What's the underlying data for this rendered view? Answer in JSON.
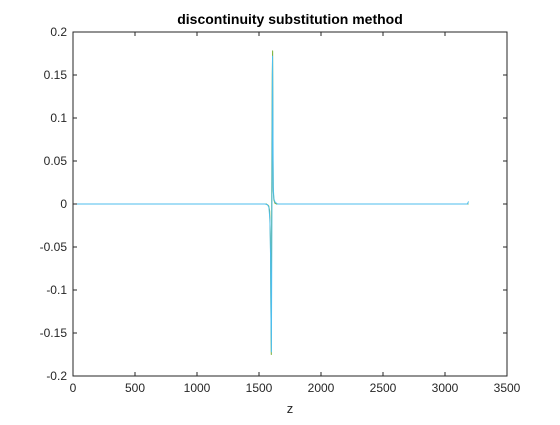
{
  "chart_data": {
    "type": "line",
    "title": "discontinuity substitution method",
    "xlabel": "z",
    "ylabel": "",
    "xlim": [
      0,
      3500
    ],
    "ylim": [
      -0.2,
      0.2
    ],
    "x_ticks": [
      0,
      500,
      1000,
      1500,
      2000,
      2500,
      3000,
      3500
    ],
    "x_tick_labels": [
      "0",
      "500",
      "1000",
      "1500",
      "2000",
      "2500",
      "3000",
      "3500"
    ],
    "y_ticks": [
      -0.2,
      -0.15,
      -0.1,
      -0.05,
      0,
      0.05,
      0.1,
      0.15,
      0.2
    ],
    "y_tick_labels": [
      "-0.2",
      "-0.15",
      "-0.1",
      "-0.05",
      "0",
      "0.05",
      "0.1",
      "0.15",
      "0.2"
    ],
    "grid": false,
    "colors": {
      "axis": "#262626",
      "series_a": "#77ac30",
      "series_b": "#4dbeee"
    },
    "series": [
      {
        "color": "#77ac30",
        "x": [
          0,
          1560,
          1578,
          1586,
          1592,
          1596,
          1599,
          1601,
          1604,
          1607,
          1610,
          1613,
          1615,
          1620,
          1628,
          1640,
          3190
        ],
        "y": [
          0.0,
          0.0,
          -0.002,
          -0.008,
          -0.04,
          -0.12,
          -0.175,
          -0.06,
          0.07,
          0.15,
          0.178,
          0.05,
          0.015,
          0.005,
          0.001,
          0.0,
          0.0
        ]
      },
      {
        "color": "#4dbeee",
        "x": [
          0,
          1550,
          1570,
          1580,
          1588,
          1593,
          1597,
          1600,
          1603,
          1606,
          1609,
          1612,
          1615,
          1620,
          1630,
          1650,
          3180,
          3190
        ],
        "y": [
          0.0,
          0.0,
          -0.001,
          -0.004,
          -0.018,
          -0.06,
          -0.14,
          -0.172,
          -0.05,
          0.08,
          0.172,
          0.1,
          0.02,
          0.006,
          0.002,
          0.0,
          0.0,
          0.003
        ]
      }
    ]
  }
}
